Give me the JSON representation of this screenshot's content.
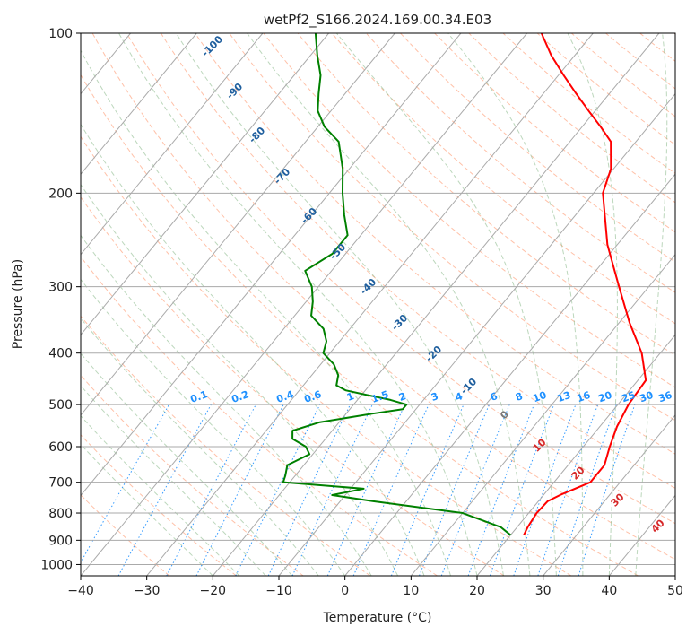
{
  "chart_data": {
    "type": "line",
    "title": "wetPf2_S166.2024.169.00.34.E03",
    "xlabel": "Temperature (°C)",
    "ylabel": "Pressure (hPa)",
    "xlim": [
      -40,
      50
    ],
    "ylim": [
      1050,
      100
    ],
    "y_scale": "log",
    "x_ticks": [
      "−40",
      "−30",
      "−20",
      "−10",
      "0",
      "10",
      "20",
      "30",
      "40",
      "50"
    ],
    "y_ticks": [
      "100",
      "200",
      "300",
      "400",
      "500",
      "600",
      "700",
      "800",
      "900",
      "1000"
    ],
    "grid": true,
    "series": [
      {
        "color": "#ff0000",
        "p": [
          880,
          850,
          800,
          760,
          740,
          700,
          650,
          600,
          550,
          500,
          450,
          400,
          350,
          300,
          250,
          200,
          180,
          160,
          150,
          140,
          130,
          120,
          110,
          100
        ],
        "t": [
          22,
          21.6,
          21.2,
          21.4,
          22.5,
          25.5,
          25.5,
          24.0,
          22.6,
          21.6,
          21.2,
          17.2,
          11.5,
          5.5,
          -1.5,
          -8.6,
          -10.4,
          -13.8,
          -17.2,
          -21.0,
          -25.0,
          -29.2,
          -33.6,
          -37.8
        ]
      },
      {
        "color": "#008000",
        "p": [
          880,
          850,
          800,
          760,
          740,
          720,
          700,
          680,
          650,
          620,
          600,
          580,
          560,
          540,
          520,
          510,
          500,
          490,
          480,
          470,
          460,
          440,
          420,
          400,
          380,
          360,
          340,
          320,
          300,
          280,
          260,
          240,
          220,
          200,
          180,
          160,
          150,
          140,
          130,
          120,
          110,
          100
        ],
        "t": [
          20.0,
          17.5,
          10.0,
          -5.0,
          -12.0,
          -8.0,
          -21.0,
          -21.5,
          -22.5,
          -20.5,
          -22.0,
          -25.0,
          -26.0,
          -23.0,
          -16.0,
          -12.0,
          -12.0,
          -15.0,
          -19.0,
          -23.0,
          -25.0,
          -26.0,
          -28.0,
          -31.0,
          -32.0,
          -34.0,
          -37.5,
          -39.0,
          -41.0,
          -44.0,
          -42.0,
          -42.0,
          -45.0,
          -48.0,
          -51.0,
          -55.0,
          -59.0,
          -62.0,
          -64.0,
          -66.0,
          -69.0,
          -72.0
        ]
      }
    ],
    "dry_adiabat_labels": [
      "-100",
      "-90",
      "-80",
      "-70",
      "-60",
      "-50",
      "-40",
      "-30",
      "-20",
      "-10",
      "0",
      "10",
      "20",
      "30",
      "40"
    ],
    "mixing_ratio_labels": [
      "0.1",
      "0.2",
      "0.4",
      "0.6",
      "1",
      "1.5",
      "2",
      "3",
      "4",
      "6",
      "8",
      "10",
      "13",
      "16",
      "20",
      "25",
      "30",
      "36"
    ],
    "colors": {
      "temperature": "#ff0000",
      "dewpoint": "#008000",
      "isotherms": "#aaaaaa",
      "isobars": "#aaaaaa",
      "dry_adiabats": "#ffa07a",
      "moist_adiabats": "#8fbc8f",
      "mixing_ratio": "#1e90ff"
    }
  }
}
